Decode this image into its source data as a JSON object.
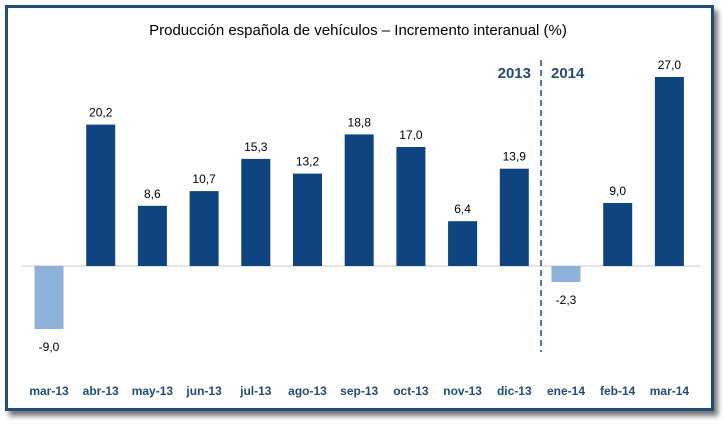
{
  "chart_data": {
    "type": "bar",
    "title": "Producción española de vehículos – Incremento interanual (%)",
    "categories": [
      "mar-13",
      "abr-13",
      "may-13",
      "jun-13",
      "jul-13",
      "ago-13",
      "sep-13",
      "oct-13",
      "nov-13",
      "dic-13",
      "ene-14",
      "feb-14",
      "mar-14"
    ],
    "values": [
      -9.0,
      20.2,
      8.6,
      10.7,
      15.3,
      13.2,
      18.8,
      17.0,
      6.4,
      13.9,
      -2.3,
      9.0,
      27.0
    ],
    "data_labels": [
      "-9,0",
      "20,2",
      "8,6",
      "10,7",
      "15,3",
      "13,2",
      "18,8",
      "17,0",
      "6,4",
      "13,9",
      "-2,3",
      "9,0",
      "27,0"
    ],
    "annotations": {
      "left_year": "2013",
      "right_year": "2014"
    },
    "divider_between": [
      "dic-13",
      "ene-14"
    ],
    "xlabel": "",
    "ylabel": "",
    "grid": false,
    "colors": {
      "positive": "#0e4580",
      "negative": "#8eb1da",
      "axis_labels": "#1f4e79",
      "frame": "#1f4e79"
    }
  }
}
